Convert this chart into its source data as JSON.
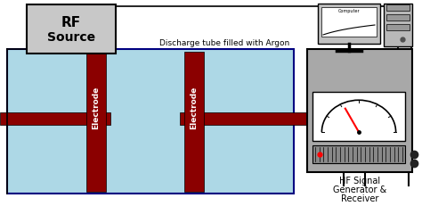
{
  "bg_color": "#ffffff",
  "tube_color": "#add8e6",
  "tube_border": "#000080",
  "electrode_color": "#8b0000",
  "rf_box_color": "#c8c8c8",
  "rf_box_border": "#000000",
  "device_box_color": "#a8a8a8",
  "device_box_border": "#000000",
  "wire_color": "#000000",
  "title_text": "Discharge tube filled with Argon",
  "hf_line1": "HF Signal",
  "hf_line2": "Generator &",
  "hf_line3": "Receiver",
  "rf_text1": "RF",
  "rf_text2": "Source",
  "computer_text": "Computer",
  "electrode_text": "Electrode"
}
